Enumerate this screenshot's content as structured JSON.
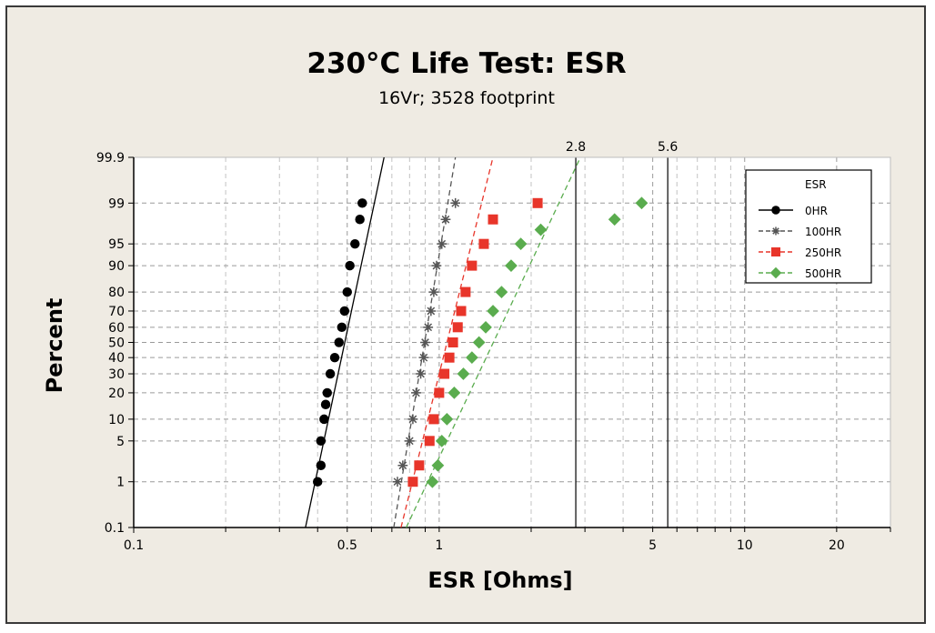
{
  "chart_data": {
    "type": "scatter",
    "title": "230°C Life Test: ESR",
    "subtitle": "16Vr; 3528 footprint",
    "xlabel": "ESR [Ohms]",
    "ylabel": "Percent",
    "x_scale": "log",
    "y_scale": "probability",
    "xlim": [
      0.1,
      30
    ],
    "ylim": [
      0.1,
      99.9
    ],
    "x_ticks": [
      {
        "value": 0.1,
        "label": "0.1"
      },
      {
        "value": 0.5,
        "label": "0.5"
      },
      {
        "value": 1,
        "label": "1"
      },
      {
        "value": 5,
        "label": "5"
      },
      {
        "value": 10,
        "label": "10"
      },
      {
        "value": 20,
        "label": "20"
      }
    ],
    "y_ticks": [
      {
        "value": 0.1,
        "label": "0.1"
      },
      {
        "value": 1,
        "label": "1"
      },
      {
        "value": 5,
        "label": "5"
      },
      {
        "value": 10,
        "label": "10"
      },
      {
        "value": 20,
        "label": "20"
      },
      {
        "value": 30,
        "label": "30"
      },
      {
        "value": 40,
        "label": "40"
      },
      {
        "value": 50,
        "label": "50"
      },
      {
        "value": 60,
        "label": "60"
      },
      {
        "value": 70,
        "label": "70"
      },
      {
        "value": 80,
        "label": "80"
      },
      {
        "value": 90,
        "label": "90"
      },
      {
        "value": 95,
        "label": "95"
      },
      {
        "value": 99,
        "label": "99"
      },
      {
        "value": 99.9,
        "label": "99.9"
      }
    ],
    "reference_lines": [
      {
        "x": 2.8,
        "label": "2.8"
      },
      {
        "x": 5.6,
        "label": "5.6"
      }
    ],
    "grid": true,
    "legend": {
      "title": "ESR",
      "position": "top-right"
    },
    "series": [
      {
        "name": "0HR",
        "color": "#000000",
        "marker": "circle",
        "line": "solid",
        "fit": [
          [
            0.365,
            0.1
          ],
          [
            0.66,
            99.9
          ]
        ],
        "points": [
          [
            0.4,
            1
          ],
          [
            0.41,
            2
          ],
          [
            0.41,
            5
          ],
          [
            0.42,
            10
          ],
          [
            0.425,
            15
          ],
          [
            0.43,
            20
          ],
          [
            0.44,
            30
          ],
          [
            0.455,
            40
          ],
          [
            0.47,
            50
          ],
          [
            0.48,
            60
          ],
          [
            0.49,
            70
          ],
          [
            0.5,
            80
          ],
          [
            0.51,
            90
          ],
          [
            0.53,
            95
          ],
          [
            0.55,
            98
          ],
          [
            0.56,
            99
          ]
        ]
      },
      {
        "name": "100HR",
        "color": "#555555",
        "marker": "asterisk",
        "line": "dashed",
        "fit": [
          [
            0.71,
            0.1
          ],
          [
            1.13,
            99.9
          ]
        ],
        "points": [
          [
            0.73,
            1
          ],
          [
            0.76,
            2
          ],
          [
            0.8,
            5
          ],
          [
            0.82,
            10
          ],
          [
            0.84,
            20
          ],
          [
            0.87,
            30
          ],
          [
            0.89,
            40
          ],
          [
            0.9,
            50
          ],
          [
            0.92,
            60
          ],
          [
            0.94,
            70
          ],
          [
            0.96,
            80
          ],
          [
            0.98,
            90
          ],
          [
            1.02,
            95
          ],
          [
            1.05,
            98
          ],
          [
            1.13,
            99
          ]
        ]
      },
      {
        "name": "250HR",
        "color": "#e8352a",
        "marker": "square",
        "line": "dashed",
        "fit": [
          [
            0.75,
            0.1
          ],
          [
            1.5,
            99.9
          ]
        ],
        "points": [
          [
            0.82,
            1
          ],
          [
            0.86,
            2
          ],
          [
            0.93,
            5
          ],
          [
            0.96,
            10
          ],
          [
            1.0,
            20
          ],
          [
            1.04,
            30
          ],
          [
            1.08,
            40
          ],
          [
            1.11,
            50
          ],
          [
            1.15,
            60
          ],
          [
            1.18,
            70
          ],
          [
            1.22,
            80
          ],
          [
            1.28,
            90
          ],
          [
            1.4,
            95
          ],
          [
            1.5,
            98
          ],
          [
            2.1,
            99
          ]
        ]
      },
      {
        "name": "500HR",
        "color": "#5aac4e",
        "marker": "diamond",
        "line": "dashed",
        "fit": [
          [
            0.78,
            0.1
          ],
          [
            2.9,
            99.9
          ]
        ],
        "points": [
          [
            0.95,
            1
          ],
          [
            0.99,
            2
          ],
          [
            1.02,
            5
          ],
          [
            1.06,
            10
          ],
          [
            1.12,
            20
          ],
          [
            1.2,
            30
          ],
          [
            1.28,
            40
          ],
          [
            1.35,
            50
          ],
          [
            1.42,
            60
          ],
          [
            1.5,
            70
          ],
          [
            1.6,
            80
          ],
          [
            1.72,
            90
          ],
          [
            1.85,
            95
          ],
          [
            2.15,
            97
          ],
          [
            3.75,
            98
          ],
          [
            4.6,
            99
          ]
        ]
      }
    ]
  }
}
